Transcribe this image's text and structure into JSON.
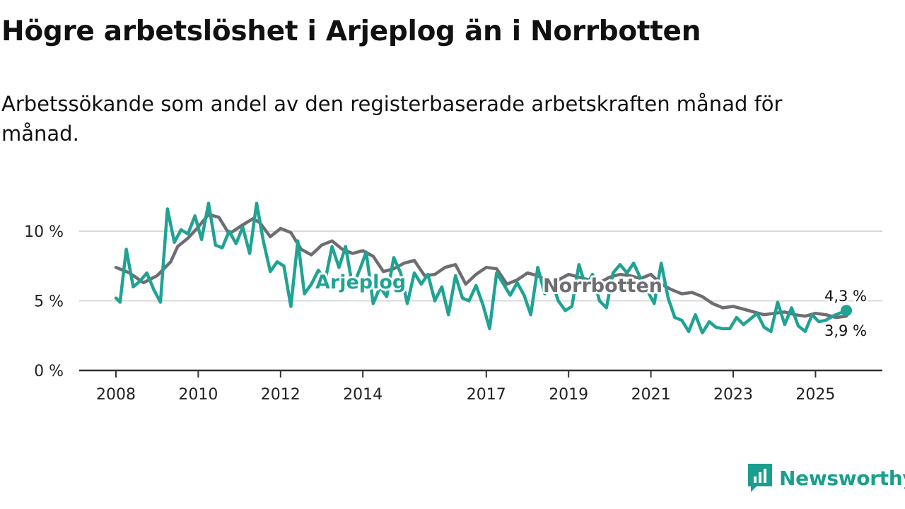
{
  "title": "Högre arbetslöshet i Arjeplog än i Norrbotten",
  "subtitle": "Arbetssökande som andel av den registerbaserade arbetskraften månad för månad.",
  "brand": {
    "name": "Newsworthy",
    "color": "#1a9e8d",
    "icon": "newsworthy-logo-icon"
  },
  "colors": {
    "arjeplog": "#1fa393",
    "norrbotten": "#6e6d72",
    "grid": "#d9d9d9",
    "axis": "#333333"
  },
  "chart_data": {
    "type": "line",
    "title": "Högre arbetslöshet i Arjeplog än i Norrbotten",
    "xlabel": "",
    "ylabel": "",
    "ylim": [
      0,
      12.5
    ],
    "xlim": [
      2008,
      2026.5
    ],
    "grid": true,
    "yticks": [
      {
        "value": 0,
        "label": "0 %"
      },
      {
        "value": 5,
        "label": "5 %"
      },
      {
        "value": 10,
        "label": "10 %"
      }
    ],
    "xticks": [
      {
        "value": 2008,
        "label": "2008"
      },
      {
        "value": 2010,
        "label": "2010"
      },
      {
        "value": 2012,
        "label": "2012"
      },
      {
        "value": 2014,
        "label": "2014"
      },
      {
        "value": 2017,
        "label": "2017"
      },
      {
        "value": 2019,
        "label": "2019"
      },
      {
        "value": 2021,
        "label": "2021"
      },
      {
        "value": 2023,
        "label": "2023"
      },
      {
        "value": 2025,
        "label": "2025"
      }
    ],
    "series": [
      {
        "name": "Norrbotten",
        "label": "Norrbotten",
        "color": "#6e6d72",
        "last_label": "3,9 %",
        "points": [
          [
            2008.0,
            7.4
          ],
          [
            2008.33,
            7.0
          ],
          [
            2008.67,
            6.3
          ],
          [
            2009.0,
            6.8
          ],
          [
            2009.33,
            7.8
          ],
          [
            2009.5,
            8.9
          ],
          [
            2009.75,
            9.5
          ],
          [
            2010.0,
            10.3
          ],
          [
            2010.25,
            11.2
          ],
          [
            2010.5,
            11.0
          ],
          [
            2010.75,
            9.8
          ],
          [
            2011.0,
            10.3
          ],
          [
            2011.33,
            10.9
          ],
          [
            2011.5,
            10.6
          ],
          [
            2011.75,
            9.6
          ],
          [
            2012.0,
            10.2
          ],
          [
            2012.25,
            9.9
          ],
          [
            2012.5,
            8.7
          ],
          [
            2012.75,
            8.3
          ],
          [
            2013.0,
            9.0
          ],
          [
            2013.25,
            9.3
          ],
          [
            2013.5,
            8.7
          ],
          [
            2013.75,
            8.4
          ],
          [
            2014.0,
            8.6
          ],
          [
            2014.25,
            8.2
          ],
          [
            2014.5,
            7.1
          ],
          [
            2014.75,
            7.3
          ],
          [
            2015.0,
            7.7
          ],
          [
            2015.25,
            7.9
          ],
          [
            2015.5,
            6.8
          ],
          [
            2015.75,
            6.9
          ],
          [
            2016.0,
            7.4
          ],
          [
            2016.25,
            7.6
          ],
          [
            2016.5,
            6.2
          ],
          [
            2016.75,
            6.9
          ],
          [
            2017.0,
            7.4
          ],
          [
            2017.25,
            7.3
          ],
          [
            2017.5,
            6.2
          ],
          [
            2017.75,
            6.5
          ],
          [
            2018.0,
            7.0
          ],
          [
            2018.25,
            6.8
          ],
          [
            2018.5,
            6.4
          ],
          [
            2018.75,
            6.5
          ],
          [
            2019.0,
            6.9
          ],
          [
            2019.25,
            6.7
          ],
          [
            2019.5,
            6.5
          ],
          [
            2019.75,
            6.3
          ],
          [
            2020.0,
            6.7
          ],
          [
            2020.25,
            6.9
          ],
          [
            2020.5,
            6.8
          ],
          [
            2020.75,
            6.6
          ],
          [
            2021.0,
            6.9
          ],
          [
            2021.25,
            6.2
          ],
          [
            2021.5,
            5.8
          ],
          [
            2021.75,
            5.5
          ],
          [
            2022.0,
            5.6
          ],
          [
            2022.25,
            5.3
          ],
          [
            2022.5,
            4.8
          ],
          [
            2022.75,
            4.5
          ],
          [
            2023.0,
            4.6
          ],
          [
            2023.25,
            4.4
          ],
          [
            2023.5,
            4.2
          ],
          [
            2023.75,
            4.0
          ],
          [
            2024.0,
            4.1
          ],
          [
            2024.25,
            4.2
          ],
          [
            2024.5,
            4.0
          ],
          [
            2024.75,
            3.9
          ],
          [
            2025.0,
            4.1
          ],
          [
            2025.25,
            4.0
          ],
          [
            2025.5,
            3.8
          ],
          [
            2025.75,
            3.9
          ]
        ]
      },
      {
        "name": "Arjeplog",
        "label": "Arjeplog",
        "color": "#1fa393",
        "last_label": "4,3 %",
        "points": [
          [
            2008.0,
            5.2
          ],
          [
            2008.1,
            4.9
          ],
          [
            2008.25,
            8.7
          ],
          [
            2008.42,
            6.0
          ],
          [
            2008.58,
            6.4
          ],
          [
            2008.75,
            7.0
          ],
          [
            2008.92,
            5.8
          ],
          [
            2009.08,
            4.9
          ],
          [
            2009.25,
            11.6
          ],
          [
            2009.42,
            9.2
          ],
          [
            2009.58,
            10.1
          ],
          [
            2009.75,
            9.8
          ],
          [
            2009.92,
            11.1
          ],
          [
            2010.08,
            9.4
          ],
          [
            2010.25,
            12.0
          ],
          [
            2010.42,
            9.0
          ],
          [
            2010.58,
            8.8
          ],
          [
            2010.75,
            10.0
          ],
          [
            2010.92,
            9.1
          ],
          [
            2011.08,
            10.3
          ],
          [
            2011.25,
            8.4
          ],
          [
            2011.42,
            12.0
          ],
          [
            2011.58,
            9.3
          ],
          [
            2011.75,
            7.1
          ],
          [
            2011.92,
            7.8
          ],
          [
            2012.08,
            7.5
          ],
          [
            2012.25,
            4.6
          ],
          [
            2012.42,
            9.3
          ],
          [
            2012.58,
            5.5
          ],
          [
            2012.75,
            6.2
          ],
          [
            2012.92,
            7.2
          ],
          [
            2013.08,
            6.4
          ],
          [
            2013.25,
            8.9
          ],
          [
            2013.42,
            7.4
          ],
          [
            2013.58,
            8.9
          ],
          [
            2013.75,
            6.0
          ],
          [
            2013.92,
            7.2
          ],
          [
            2014.08,
            8.5
          ],
          [
            2014.25,
            4.8
          ],
          [
            2014.42,
            6.0
          ],
          [
            2014.58,
            5.3
          ],
          [
            2014.75,
            8.1
          ],
          [
            2014.92,
            7.0
          ],
          [
            2015.08,
            4.8
          ],
          [
            2015.25,
            7.0
          ],
          [
            2015.42,
            6.2
          ],
          [
            2015.58,
            6.9
          ],
          [
            2015.75,
            5.0
          ],
          [
            2015.92,
            6.0
          ],
          [
            2016.08,
            4.0
          ],
          [
            2016.25,
            6.8
          ],
          [
            2016.42,
            5.2
          ],
          [
            2016.58,
            5.0
          ],
          [
            2016.75,
            6.1
          ],
          [
            2016.92,
            4.7
          ],
          [
            2017.08,
            3.0
          ],
          [
            2017.25,
            7.0
          ],
          [
            2017.42,
            6.2
          ],
          [
            2017.58,
            5.4
          ],
          [
            2017.75,
            6.3
          ],
          [
            2017.92,
            5.4
          ],
          [
            2018.08,
            4.0
          ],
          [
            2018.25,
            7.4
          ],
          [
            2018.42,
            5.5
          ],
          [
            2018.58,
            6.5
          ],
          [
            2018.75,
            5.0
          ],
          [
            2018.92,
            4.3
          ],
          [
            2019.08,
            4.6
          ],
          [
            2019.25,
            7.6
          ],
          [
            2019.42,
            6.0
          ],
          [
            2019.58,
            6.9
          ],
          [
            2019.75,
            5.0
          ],
          [
            2019.92,
            4.5
          ],
          [
            2020.08,
            7.0
          ],
          [
            2020.25,
            7.6
          ],
          [
            2020.42,
            7.0
          ],
          [
            2020.58,
            7.7
          ],
          [
            2020.75,
            6.6
          ],
          [
            2020.92,
            5.7
          ],
          [
            2021.08,
            4.8
          ],
          [
            2021.25,
            7.7
          ],
          [
            2021.42,
            5.2
          ],
          [
            2021.58,
            3.8
          ],
          [
            2021.75,
            3.6
          ],
          [
            2021.92,
            2.8
          ],
          [
            2022.08,
            4.0
          ],
          [
            2022.25,
            2.7
          ],
          [
            2022.42,
            3.5
          ],
          [
            2022.58,
            3.1
          ],
          [
            2022.75,
            3.0
          ],
          [
            2022.92,
            3.0
          ],
          [
            2023.08,
            3.8
          ],
          [
            2023.25,
            3.3
          ],
          [
            2023.42,
            3.7
          ],
          [
            2023.58,
            4.1
          ],
          [
            2023.75,
            3.1
          ],
          [
            2023.92,
            2.8
          ],
          [
            2024.08,
            4.9
          ],
          [
            2024.25,
            3.3
          ],
          [
            2024.42,
            4.5
          ],
          [
            2024.58,
            3.2
          ],
          [
            2024.75,
            2.8
          ],
          [
            2024.92,
            4.0
          ],
          [
            2025.08,
            3.5
          ],
          [
            2025.25,
            3.6
          ],
          [
            2025.42,
            3.9
          ],
          [
            2025.58,
            4.1
          ],
          [
            2025.75,
            4.3
          ]
        ]
      }
    ]
  }
}
